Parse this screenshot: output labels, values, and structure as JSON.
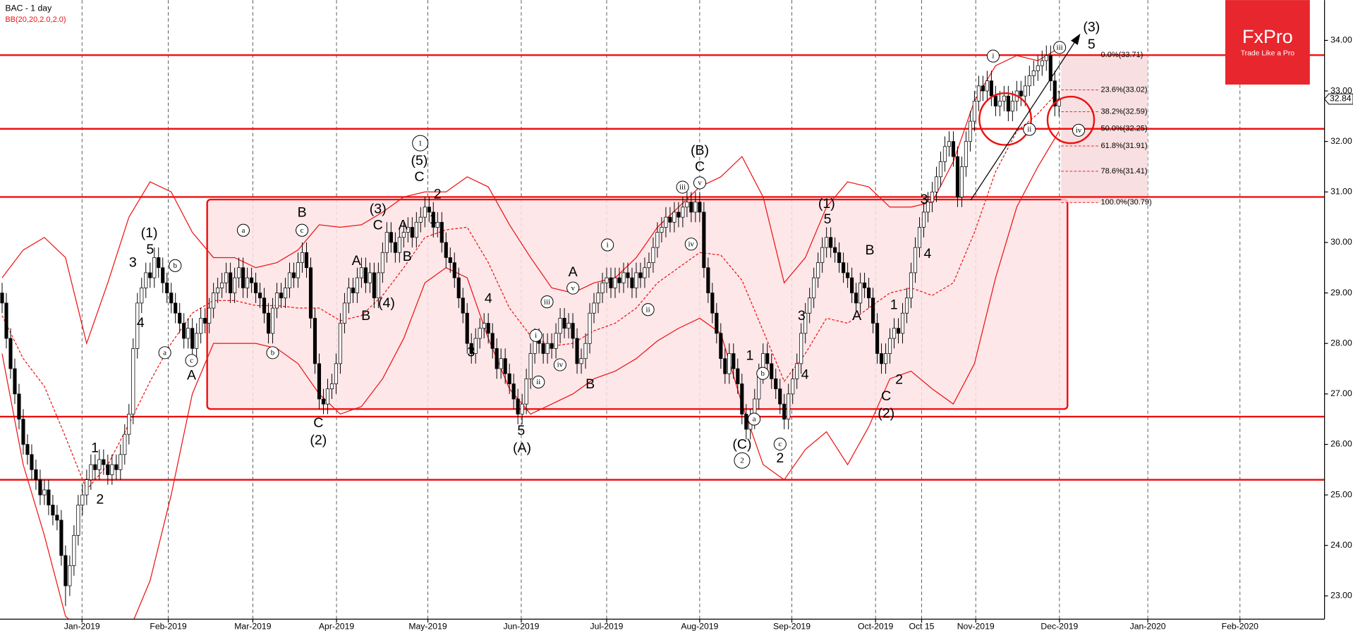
{
  "chart_data": {
    "type": "candlestick",
    "title": "BAC  - 1 day",
    "indicator": "BB(20,20,2.0,2.0)",
    "up_color": "#ffffff",
    "down_color": "#000000",
    "open": [
      29.0,
      28.8,
      28.1,
      27.5,
      27.0,
      26.5,
      26.0,
      25.8,
      25.5,
      25.3,
      25.0,
      25.1,
      24.8,
      24.6,
      24.5,
      23.8,
      23.2,
      23.6,
      24.2,
      24.8,
      25.0,
      25.3,
      25.6,
      25.5,
      25.7,
      25.6,
      25.4,
      25.6,
      25.5,
      25.8,
      26.2,
      26.6,
      27.9,
      28.8,
      29.1,
      29.4,
      29.3,
      29.7,
      29.5,
      29.2,
      29.0,
      28.8,
      28.6,
      28.4,
      28.1,
      28.3,
      27.9,
      28.2,
      28.5,
      28.4,
      28.7,
      29.0,
      29.1,
      29.2,
      29.4,
      29.0,
      29.3,
      29.5,
      29.1,
      29.3,
      29.2,
      29.0,
      28.9,
      28.6,
      28.2,
      28.7,
      29.0,
      28.9,
      29.1,
      29.4,
      29.3,
      29.6,
      29.8,
      29.5,
      28.5,
      27.6,
      26.9,
      26.8,
      27.1,
      27.2,
      27.6,
      28.4,
      28.8,
      29.1,
      29.0,
      29.3,
      29.5,
      29.2,
      29.4,
      28.9,
      29.4,
      29.8,
      30.2,
      30.0,
      29.8,
      30.1,
      30.2,
      30.3,
      30.1,
      30.4,
      30.5,
      30.7,
      30.6,
      30.3,
      30.4,
      30.0,
      29.7,
      29.6,
      29.3,
      28.9,
      28.6,
      28.0,
      27.8,
      28.1,
      28.3,
      28.4,
      28.2,
      27.9,
      27.5,
      27.7,
      27.4,
      27.2,
      26.9,
      26.6,
      26.8,
      27.3,
      27.8,
      28.1,
      28.0,
      27.8,
      28.0,
      27.9,
      28.2,
      28.5,
      28.3,
      28.4,
      28.1,
      27.6,
      27.7,
      28.0,
      28.6,
      28.8,
      29.0,
      29.2,
      29.3,
      29.1,
      29.3,
      29.2,
      29.4,
      29.3,
      29.1,
      29.4,
      29.3,
      29.5,
      29.6,
      29.9,
      30.2,
      30.3,
      30.5,
      30.4,
      30.6,
      30.5,
      30.7,
      30.8,
      30.6,
      30.8,
      30.6,
      29.5,
      29.0,
      28.6,
      28.2,
      27.7,
      27.4,
      27.8,
      27.5,
      27.2,
      26.6,
      26.3,
      26.5,
      26.9,
      27.4,
      27.8,
      27.6,
      27.3,
      27.1,
      26.8,
      26.5,
      27.0,
      27.3,
      27.6,
      28.2,
      28.6,
      28.9,
      29.3,
      29.6,
      29.9,
      30.1,
      29.9,
      29.8,
      29.6,
      29.4,
      29.3,
      29.0,
      28.8,
      29.2,
      29.1,
      28.9,
      28.4,
      27.8,
      27.6,
      27.8,
      28.1,
      28.3,
      28.2,
      28.6,
      28.9,
      29.4,
      29.9,
      30.3,
      30.6,
      30.8,
      31.0,
      31.3,
      31.6,
      31.9,
      32.0,
      31.7,
      30.9,
      31.5,
      32.0,
      32.4,
      32.8,
      33.1,
      33.0,
      33.2,
      32.9,
      32.7,
      32.8,
      32.9,
      32.6,
      32.8,
      33.0,
      32.9,
      33.1,
      33.3,
      33.4,
      33.5,
      33.6,
      33.7,
      33.2,
      32.7
    ],
    "high": [
      29.2,
      29.0,
      28.3,
      27.7,
      27.2,
      26.7,
      26.2,
      26.0,
      25.7,
      25.5,
      25.3,
      25.3,
      25.0,
      24.8,
      24.7,
      24.0,
      23.8,
      24.4,
      25.0,
      25.2,
      25.5,
      25.8,
      25.8,
      25.9,
      25.9,
      25.8,
      25.8,
      25.8,
      26.0,
      26.4,
      26.8,
      28.1,
      29.0,
      29.3,
      29.6,
      29.6,
      29.9,
      29.9,
      29.7,
      29.4,
      29.2,
      29.0,
      28.8,
      28.6,
      28.5,
      28.5,
      28.4,
      28.7,
      28.7,
      28.9,
      29.2,
      29.3,
      29.4,
      29.6,
      29.6,
      29.5,
      29.7,
      29.7,
      29.5,
      29.5,
      29.4,
      29.2,
      29.1,
      28.8,
      28.9,
      29.2,
      29.2,
      29.3,
      29.6,
      29.6,
      29.8,
      30.0,
      30.0,
      29.7,
      28.7,
      27.8,
      27.1,
      27.3,
      27.4,
      27.8,
      28.6,
      29.0,
      29.3,
      29.3,
      29.5,
      29.7,
      29.7,
      29.6,
      29.6,
      29.6,
      30.0,
      30.4,
      30.4,
      30.2,
      30.3,
      30.4,
      30.5,
      30.5,
      30.6,
      30.7,
      30.9,
      30.9,
      30.8,
      30.6,
      30.6,
      30.2,
      29.9,
      29.8,
      29.5,
      29.1,
      28.8,
      28.2,
      28.3,
      28.5,
      28.6,
      28.6,
      28.4,
      28.1,
      27.9,
      27.9,
      27.6,
      27.4,
      27.1,
      27.0,
      27.5,
      28.0,
      28.3,
      28.3,
      28.2,
      28.2,
      28.2,
      28.4,
      28.7,
      28.7,
      28.6,
      28.6,
      28.3,
      27.9,
      28.2,
      28.8,
      29.0,
      29.2,
      29.4,
      29.5,
      29.5,
      29.5,
      29.5,
      29.6,
      29.6,
      29.5,
      29.6,
      29.6,
      29.7,
      29.8,
      30.1,
      30.4,
      30.5,
      30.7,
      30.7,
      30.8,
      30.8,
      30.9,
      31.0,
      31.0,
      31.0,
      31.0,
      30.8,
      29.7,
      29.2,
      28.8,
      28.4,
      27.9,
      28.0,
      28.0,
      27.7,
      27.4,
      26.8,
      26.7,
      27.1,
      27.6,
      28.0,
      28.0,
      27.8,
      27.5,
      27.3,
      27.0,
      27.2,
      27.5,
      27.8,
      28.4,
      28.8,
      29.1,
      29.5,
      29.8,
      30.1,
      30.3,
      30.3,
      30.1,
      30.0,
      29.8,
      29.6,
      29.5,
      29.2,
      29.4,
      29.4,
      29.3,
      29.1,
      28.6,
      28.0,
      28.0,
      28.3,
      28.5,
      28.5,
      28.8,
      29.1,
      29.6,
      30.1,
      30.5,
      30.8,
      31.0,
      31.2,
      31.5,
      31.8,
      32.1,
      32.2,
      32.2,
      31.9,
      31.7,
      32.2,
      32.6,
      33.0,
      33.3,
      33.3,
      33.4,
      33.4,
      33.1,
      33.0,
      33.1,
      33.1,
      33.0,
      33.2,
      33.2,
      33.3,
      33.5,
      33.6,
      33.7,
      33.8,
      33.9,
      33.9,
      33.4,
      33.0
    ],
    "low": [
      28.6,
      27.9,
      27.3,
      26.8,
      26.3,
      25.8,
      25.6,
      25.3,
      25.1,
      24.8,
      24.8,
      24.6,
      24.4,
      24.3,
      23.6,
      22.8,
      23.0,
      23.4,
      24.0,
      24.6,
      24.8,
      25.1,
      25.3,
      25.3,
      25.4,
      25.2,
      25.2,
      25.3,
      25.3,
      25.6,
      26.0,
      26.4,
      27.7,
      28.6,
      28.9,
      29.1,
      29.1,
      29.3,
      29.0,
      28.8,
      28.6,
      28.4,
      28.2,
      27.9,
      27.9,
      27.7,
      27.7,
      28.0,
      28.2,
      28.2,
      28.5,
      28.8,
      28.9,
      29.0,
      28.8,
      28.8,
      29.1,
      28.9,
      28.9,
      29.0,
      28.8,
      28.7,
      28.4,
      28.0,
      28.0,
      28.5,
      28.7,
      28.7,
      28.9,
      29.1,
      29.1,
      29.4,
      29.3,
      28.3,
      27.4,
      26.7,
      26.6,
      26.6,
      26.9,
      27.0,
      27.4,
      28.2,
      28.6,
      28.8,
      28.8,
      29.1,
      29.0,
      29.0,
      28.7,
      28.7,
      29.2,
      29.6,
      29.8,
      29.6,
      29.6,
      29.9,
      30.0,
      29.9,
      29.9,
      30.2,
      30.3,
      30.4,
      30.1,
      30.1,
      29.8,
      29.5,
      29.4,
      29.1,
      28.7,
      28.4,
      27.8,
      27.6,
      27.6,
      27.9,
      28.1,
      28.0,
      27.7,
      27.3,
      27.3,
      27.2,
      27.0,
      26.7,
      26.4,
      26.4,
      26.6,
      27.1,
      27.6,
      27.8,
      27.6,
      27.6,
      27.7,
      27.7,
      28.0,
      28.1,
      28.1,
      27.9,
      27.4,
      27.4,
      27.5,
      27.8,
      28.4,
      28.6,
      28.8,
      29.0,
      28.9,
      28.9,
      29.0,
      29.0,
      29.1,
      28.9,
      28.9,
      29.1,
      29.1,
      29.3,
      29.4,
      29.7,
      30.0,
      30.1,
      30.2,
      30.2,
      30.3,
      30.3,
      30.5,
      30.4,
      30.4,
      30.4,
      29.3,
      28.8,
      28.4,
      28.0,
      27.5,
      27.2,
      27.2,
      27.3,
      27.0,
      26.4,
      26.1,
      26.1,
      26.3,
      26.7,
      27.2,
      27.4,
      27.1,
      26.9,
      26.6,
      26.3,
      26.3,
      26.8,
      27.1,
      27.4,
      28.0,
      28.4,
      28.7,
      29.1,
      29.4,
      29.7,
      29.7,
      29.6,
      29.4,
      29.2,
      29.1,
      28.8,
      28.6,
      28.6,
      28.9,
      28.7,
      28.2,
      27.6,
      27.4,
      27.4,
      27.6,
      27.9,
      28.0,
      28.0,
      28.4,
      28.7,
      29.2,
      29.7,
      30.1,
      30.4,
      30.6,
      30.8,
      31.1,
      31.4,
      31.7,
      31.5,
      30.7,
      30.7,
      31.3,
      31.8,
      32.2,
      32.6,
      32.8,
      32.8,
      32.7,
      32.5,
      32.5,
      32.6,
      32.4,
      32.4,
      32.6,
      32.7,
      32.7,
      32.9,
      33.1,
      33.2,
      33.3,
      33.4,
      33.0,
      32.5,
      32.5
    ],
    "close": [
      28.8,
      28.1,
      27.5,
      27.0,
      26.5,
      26.0,
      25.8,
      25.5,
      25.3,
      25.0,
      25.1,
      24.8,
      24.6,
      24.5,
      23.8,
      23.2,
      23.6,
      24.2,
      24.8,
      25.0,
      25.3,
      25.6,
      25.5,
      25.7,
      25.6,
      25.4,
      25.6,
      25.5,
      25.8,
      26.2,
      26.6,
      27.9,
      28.8,
      29.1,
      29.4,
      29.3,
      29.7,
      29.5,
      29.2,
      29.0,
      28.8,
      28.6,
      28.4,
      28.1,
      28.3,
      27.9,
      28.2,
      28.5,
      28.4,
      28.7,
      29.0,
      29.1,
      29.2,
      29.4,
      29.0,
      29.3,
      29.5,
      29.1,
      29.3,
      29.2,
      29.0,
      28.9,
      28.6,
      28.2,
      28.7,
      29.0,
      28.9,
      29.1,
      29.4,
      29.3,
      29.6,
      29.8,
      29.5,
      28.5,
      27.6,
      26.9,
      26.8,
      27.1,
      27.2,
      27.6,
      28.4,
      28.8,
      29.1,
      29.0,
      29.3,
      29.5,
      29.2,
      29.4,
      28.9,
      29.4,
      29.8,
      30.2,
      30.0,
      29.8,
      30.1,
      30.2,
      30.3,
      30.1,
      30.4,
      30.5,
      30.7,
      30.6,
      30.3,
      30.4,
      30.0,
      29.7,
      29.6,
      29.3,
      28.9,
      28.6,
      28.0,
      27.8,
      28.1,
      28.3,
      28.4,
      28.2,
      27.9,
      27.5,
      27.7,
      27.4,
      27.2,
      26.9,
      26.6,
      26.8,
      27.3,
      27.8,
      28.1,
      28.0,
      27.8,
      28.0,
      27.9,
      28.2,
      28.5,
      28.3,
      28.4,
      28.1,
      27.6,
      27.7,
      28.0,
      28.6,
      28.8,
      29.0,
      29.2,
      29.3,
      29.1,
      29.3,
      29.2,
      29.4,
      29.3,
      29.1,
      29.4,
      29.3,
      29.5,
      29.6,
      29.9,
      30.2,
      30.3,
      30.5,
      30.4,
      30.6,
      30.5,
      30.7,
      30.8,
      30.6,
      30.8,
      30.6,
      29.5,
      29.0,
      28.6,
      28.2,
      27.7,
      27.4,
      27.8,
      27.5,
      27.2,
      26.6,
      26.3,
      26.5,
      26.9,
      27.4,
      27.8,
      27.6,
      27.3,
      27.1,
      26.8,
      26.5,
      27.0,
      27.3,
      27.6,
      28.2,
      28.6,
      28.9,
      29.3,
      29.6,
      29.9,
      30.1,
      29.9,
      29.8,
      29.6,
      29.4,
      29.3,
      29.0,
      28.8,
      29.2,
      29.1,
      28.9,
      28.4,
      27.8,
      27.6,
      27.8,
      28.1,
      28.3,
      28.2,
      28.6,
      28.9,
      29.4,
      29.9,
      30.3,
      30.6,
      30.8,
      31.0,
      31.3,
      31.6,
      31.9,
      32.0,
      31.7,
      30.9,
      31.5,
      32.0,
      32.4,
      32.8,
      33.1,
      33.0,
      33.2,
      32.9,
      32.7,
      32.8,
      32.9,
      32.6,
      32.8,
      33.0,
      32.9,
      33.1,
      33.3,
      33.4,
      33.5,
      33.6,
      33.7,
      33.2,
      32.7,
      32.84
    ],
    "bollinger": {
      "color": "#ee1111",
      "x": [
        0,
        5,
        10,
        15,
        20,
        25,
        30,
        35,
        40,
        45,
        50,
        55,
        60,
        65,
        70,
        75,
        80,
        85,
        90,
        95,
        100,
        105,
        110,
        115,
        120,
        125,
        130,
        135,
        140,
        145,
        150,
        155,
        160,
        165,
        170,
        175,
        180,
        185,
        190,
        195,
        200,
        205,
        210,
        215,
        220,
        225,
        230,
        235,
        240,
        245,
        250
      ],
      "upper": [
        29.3,
        29.85,
        30.1,
        29.7,
        28.0,
        29.2,
        30.5,
        31.2,
        31.0,
        30.2,
        29.7,
        29.7,
        29.5,
        29.6,
        29.85,
        30.35,
        30.3,
        30.35,
        30.6,
        30.9,
        31.0,
        31.0,
        31.3,
        31.1,
        30.35,
        29.7,
        29.1,
        29.0,
        29.2,
        29.3,
        29.7,
        30.3,
        30.7,
        31.1,
        31.3,
        31.7,
        30.9,
        29.2,
        29.7,
        30.7,
        31.2,
        31.1,
        30.7,
        30.7,
        30.8,
        31.6,
        32.8,
        33.5,
        33.7,
        33.6,
        33.85
      ],
      "middle": [
        28.55,
        27.7,
        27.15,
        26.15,
        25.1,
        25.6,
        26.4,
        27.25,
        28.0,
        28.6,
        28.85,
        28.85,
        28.75,
        28.75,
        28.7,
        28.7,
        28.45,
        28.55,
        28.95,
        29.5,
        30.1,
        30.25,
        30.3,
        29.6,
        28.7,
        28.15,
        27.95,
        28.0,
        28.25,
        28.4,
        28.7,
        29.2,
        29.5,
        29.8,
        29.75,
        29.25,
        28.25,
        27.25,
        27.8,
        28.5,
        28.4,
        28.7,
        29.0,
        29.1,
        28.95,
        29.2,
        30.2,
        31.4,
        32.2,
        32.55,
        33.0
      ],
      "lower": [
        27.8,
        25.6,
        24.2,
        22.6,
        22.2,
        22.0,
        22.3,
        23.3,
        25.0,
        27.0,
        28.0,
        28.0,
        28.0,
        27.9,
        27.6,
        27.0,
        26.6,
        26.75,
        27.3,
        28.1,
        29.2,
        29.5,
        29.3,
        28.1,
        27.1,
        26.6,
        26.8,
        27.0,
        27.3,
        27.45,
        27.7,
        28.05,
        28.3,
        28.5,
        28.2,
        26.8,
        25.6,
        25.3,
        25.9,
        26.25,
        25.6,
        26.35,
        27.3,
        27.45,
        27.1,
        26.8,
        27.6,
        29.3,
        30.7,
        31.5,
        32.2
      ]
    },
    "xlim": [
      -0.5,
      312.8
    ],
    "xticks": [
      {
        "value": 18.9,
        "label": "Jan-2019"
      },
      {
        "value": 39.3,
        "label": "Feb-2019"
      },
      {
        "value": 59.3,
        "label": "Mar-2019"
      },
      {
        "value": 79.1,
        "label": "Apr-2019"
      },
      {
        "value": 100.7,
        "label": "May-2019"
      },
      {
        "value": 122.8,
        "label": "Jun-2019"
      },
      {
        "value": 143.0,
        "label": "Jul-2019"
      },
      {
        "value": 165.0,
        "label": "Aug-2019"
      },
      {
        "value": 186.8,
        "label": "Sep-2019"
      },
      {
        "value": 206.6,
        "label": "Oct-2019"
      },
      {
        "value": 217.5,
        "label": "Oct 15"
      },
      {
        "value": 230.3,
        "label": "Nov-2019"
      },
      {
        "value": 250.1,
        "label": "Dec-2019"
      },
      {
        "value": 271.0,
        "label": "Jan-2020"
      },
      {
        "value": 292.8,
        "label": "Feb-2020"
      }
    ],
    "ylim": [
      22.54,
      34.8
    ],
    "yticks": [
      {
        "value": 23,
        "label": "23.00"
      },
      {
        "value": 24,
        "label": "24.00"
      },
      {
        "value": 25,
        "label": "25.00"
      },
      {
        "value": 26,
        "label": "26.00"
      },
      {
        "value": 27,
        "label": "27.00"
      },
      {
        "value": 28,
        "label": "28.00"
      },
      {
        "value": 29,
        "label": "29.00"
      },
      {
        "value": 30,
        "label": "30.00"
      },
      {
        "value": 31,
        "label": "31.00"
      },
      {
        "value": 32,
        "label": "32.00"
      },
      {
        "value": 33,
        "label": "33.00"
      },
      {
        "value": 34,
        "label": "34.00"
      }
    ],
    "levels": [
      33.71,
      32.25,
      30.9,
      26.55,
      25.3
    ],
    "level_color": "#ee1111",
    "range_box": {
      "x": [
        48.5,
        252
      ],
      "y": [
        26.7,
        30.85
      ]
    },
    "fibonacci": {
      "x": [
        250.5,
        271
      ],
      "levels": [
        {
          "value": 33.71,
          "label": "0.0%(33.71)"
        },
        {
          "value": 33.02,
          "label": "23.6%(33.02)"
        },
        {
          "value": 32.59,
          "label": "38.2%(32.59)"
        },
        {
          "value": 32.25,
          "label": "50.0%(32.25)"
        },
        {
          "value": 31.91,
          "label": "61.8%(31.91)"
        },
        {
          "value": 31.41,
          "label": "78.6%(31.41)"
        },
        {
          "value": 30.79,
          "label": "100.0%(30.79)"
        }
      ]
    },
    "last_price": 32.84,
    "annotations": [
      "(1)",
      "5",
      "3",
      "4",
      "1",
      "2",
      "A",
      "B",
      "C",
      "(2)",
      "(3)",
      "C",
      "A",
      "B",
      "(4)",
      "A",
      "B",
      "(5)",
      "C",
      "2",
      "1",
      "4",
      "3",
      "5",
      "(A)",
      "A",
      "B",
      "(B)",
      "C",
      "1",
      "(C)",
      "2",
      "3",
      "4",
      "(1)",
      "5",
      "A",
      "B",
      "1",
      "2",
      "C",
      "(2)",
      "3",
      "4",
      "(3)",
      "5"
    ],
    "circled_labels": [
      "1",
      "a",
      "b",
      "a",
      "c",
      "c",
      "b",
      "i",
      "ii",
      "iii",
      "iv",
      "v",
      "i",
      "ii",
      "iii",
      "iv",
      "v",
      "a",
      "b",
      "c",
      "2",
      "i",
      "ii",
      "iii",
      "iv"
    ]
  },
  "logo": {
    "brand": "FxPro",
    "tagline": "Trade Like a Pro"
  }
}
